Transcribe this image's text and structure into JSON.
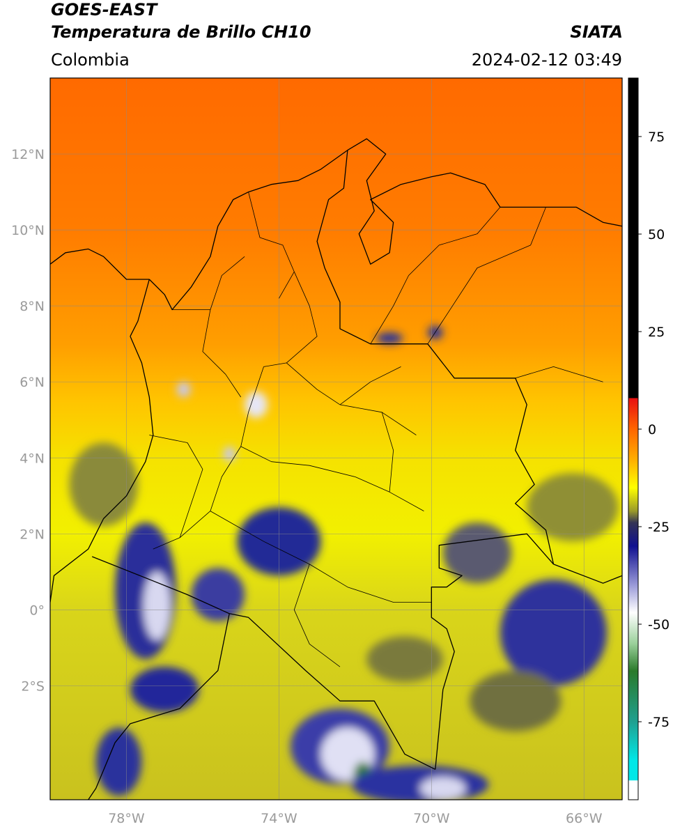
{
  "header": {
    "line1": "GOES-EAST",
    "line2": "Temperatura de Brillo CH10",
    "org": "SIATA",
    "region": "Colombia",
    "datetime": "2024-02-12 03:49"
  },
  "map": {
    "lon_range": [
      -80,
      -65
    ],
    "lat_range": [
      -5,
      14
    ],
    "lat_ticks": [
      {
        "value": 12,
        "label": "12°N"
      },
      {
        "value": 10,
        "label": "10°N"
      },
      {
        "value": 8,
        "label": "8°N"
      },
      {
        "value": 6,
        "label": "6°N"
      },
      {
        "value": 4,
        "label": "4°N"
      },
      {
        "value": 2,
        "label": "2°N"
      },
      {
        "value": 0,
        "label": "0°"
      },
      {
        "value": -2,
        "label": "2°S"
      }
    ],
    "lon_ticks": [
      {
        "value": -78,
        "label": "78°W"
      },
      {
        "value": -74,
        "label": "74°W"
      },
      {
        "value": -70,
        "label": "70°W"
      },
      {
        "value": -66,
        "label": "66°W"
      }
    ],
    "gridlines": true
  },
  "colorbar": {
    "range": [
      -95,
      90
    ],
    "ticks": [
      {
        "value": 75,
        "label": "75"
      },
      {
        "value": 50,
        "label": "50"
      },
      {
        "value": 25,
        "label": "25"
      },
      {
        "value": 0,
        "label": "0"
      },
      {
        "value": -25,
        "label": "-25"
      },
      {
        "value": -50,
        "label": "-50"
      },
      {
        "value": -75,
        "label": "-75"
      }
    ],
    "stops": [
      {
        "value": 90,
        "color": "#000000"
      },
      {
        "value": 8,
        "color": "#000000"
      },
      {
        "value": 7.9,
        "color": "#e81010"
      },
      {
        "value": 0,
        "color": "#ff6600"
      },
      {
        "value": -8,
        "color": "#ffb000"
      },
      {
        "value": -15,
        "color": "#ffff00"
      },
      {
        "value": -21,
        "color": "#9a9a2a"
      },
      {
        "value": -24,
        "color": "#333355"
      },
      {
        "value": -30,
        "color": "#101090"
      },
      {
        "value": -40,
        "color": "#9a9ad8"
      },
      {
        "value": -47,
        "color": "#ffffff"
      },
      {
        "value": -55,
        "color": "#9ad09a"
      },
      {
        "value": -62,
        "color": "#2a7a2a"
      },
      {
        "value": -75,
        "color": "#20a090"
      },
      {
        "value": -85,
        "color": "#00e8e8"
      },
      {
        "value": -90,
        "color": "#00e8e8"
      },
      {
        "value": -90.1,
        "color": "#ffffff"
      },
      {
        "value": -95,
        "color": "#ffffff"
      }
    ]
  },
  "field": {
    "lat_gradient": [
      {
        "lat": 14,
        "color": "#ff6a00"
      },
      {
        "lat": 10,
        "color": "#ff7c00"
      },
      {
        "lat": 7,
        "color": "#ff9e00"
      },
      {
        "lat": 5.5,
        "color": "#ffc400"
      },
      {
        "lat": 4,
        "color": "#f5e200"
      },
      {
        "lat": 2,
        "color": "#f2f000"
      },
      {
        "lat": 0,
        "color": "#d9d51a"
      },
      {
        "lat": -5,
        "color": "#c9c21e"
      }
    ],
    "cloud_cells": [
      {
        "lon": -77.5,
        "lat": 0.5,
        "rx": 0.8,
        "ry": 1.8,
        "color": "#2a2f9a"
      },
      {
        "lon": -77.2,
        "lat": 0.1,
        "rx": 0.35,
        "ry": 0.9,
        "color": "#d8d8f0"
      },
      {
        "lon": -74,
        "lat": 1.8,
        "rx": 1.1,
        "ry": 0.9,
        "color": "#242a96"
      },
      {
        "lon": -77,
        "lat": -2.1,
        "rx": 0.9,
        "ry": 0.6,
        "color": "#23289a"
      },
      {
        "lon": -72.4,
        "lat": -3.6,
        "rx": 1.3,
        "ry": 1.0,
        "color": "#3a3ea8"
      },
      {
        "lon": -72.2,
        "lat": -3.8,
        "rx": 0.7,
        "ry": 0.7,
        "color": "#e0e0f4"
      },
      {
        "lon": -71.8,
        "lat": -4.4,
        "rx": 0.25,
        "ry": 0.4,
        "color": "#2a7a2a"
      },
      {
        "lon": -70.3,
        "lat": -4.6,
        "rx": 1.8,
        "ry": 0.5,
        "color": "#2a30a0"
      },
      {
        "lon": -69.7,
        "lat": -4.7,
        "rx": 0.6,
        "ry": 0.3,
        "color": "#d8d8f0"
      },
      {
        "lon": -66.8,
        "lat": -0.6,
        "rx": 1.4,
        "ry": 1.4,
        "color": "#2e339c"
      },
      {
        "lon": -68.8,
        "lat": 1.5,
        "rx": 0.9,
        "ry": 0.8,
        "color": "#5a5a70"
      },
      {
        "lon": -75.6,
        "lat": 0.4,
        "rx": 0.7,
        "ry": 0.7,
        "color": "#3a3ea0"
      },
      {
        "lon": -74.6,
        "lat": 5.4,
        "rx": 0.3,
        "ry": 0.35,
        "color": "#e6e6f6"
      },
      {
        "lon": -76.5,
        "lat": 5.8,
        "rx": 0.18,
        "ry": 0.2,
        "color": "#c8c8ee"
      },
      {
        "lon": -75.3,
        "lat": 4.1,
        "rx": 0.16,
        "ry": 0.2,
        "color": "#c8c8ee"
      },
      {
        "lon": -71.1,
        "lat": 7.15,
        "rx": 0.35,
        "ry": 0.15,
        "color": "#26309a"
      },
      {
        "lon": -69.9,
        "lat": 7.3,
        "rx": 0.2,
        "ry": 0.18,
        "color": "#26309a"
      },
      {
        "lon": -78.6,
        "lat": 3.3,
        "rx": 0.9,
        "ry": 1.1,
        "color": "#8a8a3a"
      },
      {
        "lon": -66.3,
        "lat": 2.7,
        "rx": 1.2,
        "ry": 0.9,
        "color": "#8f8f36"
      },
      {
        "lon": -67.8,
        "lat": -2.4,
        "rx": 1.2,
        "ry": 0.8,
        "color": "#6f6f40"
      },
      {
        "lon": -70.7,
        "lat": -1.3,
        "rx": 1.0,
        "ry": 0.6,
        "color": "#7a7a3c"
      },
      {
        "lon": -78.2,
        "lat": -4.0,
        "rx": 0.6,
        "ry": 0.9,
        "color": "#2c329c"
      }
    ]
  },
  "borders": {
    "coast_colombia_caribbean": [
      [
        -77.4,
        8.7
      ],
      [
        -77.0,
        8.3
      ],
      [
        -76.8,
        7.9
      ],
      [
        -76.3,
        8.5
      ],
      [
        -75.8,
        9.3
      ],
      [
        -75.6,
        10.1
      ],
      [
        -75.2,
        10.8
      ],
      [
        -74.8,
        11.0
      ],
      [
        -74.2,
        11.2
      ],
      [
        -73.5,
        11.3
      ],
      [
        -72.9,
        11.6
      ],
      [
        -72.2,
        12.1
      ],
      [
        -71.7,
        12.4
      ],
      [
        -71.2,
        12.0
      ],
      [
        -71.7,
        11.3
      ],
      [
        -71.5,
        10.5
      ],
      [
        -71.9,
        9.9
      ],
      [
        -71.6,
        9.1
      ],
      [
        -71.1,
        9.4
      ],
      [
        -71.0,
        10.2
      ],
      [
        -71.6,
        10.8
      ],
      [
        -70.8,
        11.2
      ],
      [
        -70.0,
        11.4
      ],
      [
        -69.5,
        11.5
      ],
      [
        -68.6,
        11.2
      ],
      [
        -68.2,
        10.6
      ],
      [
        -67.0,
        10.6
      ],
      [
        -66.2,
        10.6
      ],
      [
        -65.5,
        10.2
      ],
      [
        -65.0,
        10.1
      ]
    ],
    "coast_panama": [
      [
        -80,
        9.1
      ],
      [
        -79.6,
        9.4
      ],
      [
        -79.0,
        9.5
      ],
      [
        -78.6,
        9.3
      ],
      [
        -78.0,
        8.7
      ],
      [
        -77.4,
        8.7
      ]
    ],
    "coast_pacific": [
      [
        -77.9,
        7.2
      ],
      [
        -77.6,
        6.5
      ],
      [
        -77.4,
        5.6
      ],
      [
        -77.3,
        4.6
      ],
      [
        -77.5,
        3.9
      ],
      [
        -78.0,
        3.0
      ],
      [
        -78.6,
        2.4
      ],
      [
        -79.0,
        1.6
      ],
      [
        -79.9,
        0.9
      ],
      [
        -80.0,
        0.2
      ]
    ],
    "border_col_ven": [
      [
        -72.2,
        12.1
      ],
      [
        -72.3,
        11.1
      ],
      [
        -72.7,
        10.8
      ],
      [
        -73.0,
        9.7
      ],
      [
        -72.8,
        9.0
      ],
      [
        -72.4,
        8.1
      ],
      [
        -72.4,
        7.4
      ],
      [
        -71.6,
        7.0
      ],
      [
        -70.1,
        7.0
      ],
      [
        -69.4,
        6.1
      ],
      [
        -67.8,
        6.1
      ],
      [
        -67.5,
        5.4
      ],
      [
        -67.8,
        4.2
      ],
      [
        -67.3,
        3.3
      ],
      [
        -67.8,
        2.8
      ],
      [
        -67.0,
        2.1
      ],
      [
        -66.8,
        1.2
      ]
    ],
    "border_col_bra": [
      [
        -66.8,
        1.2
      ],
      [
        -67.5,
        2.0
      ],
      [
        -69.8,
        1.7
      ],
      [
        -69.8,
        1.1
      ],
      [
        -69.2,
        0.9
      ],
      [
        -69.6,
        0.6
      ],
      [
        -70.0,
        0.6
      ],
      [
        -70.0,
        -0.2
      ],
      [
        -69.6,
        -0.5
      ],
      [
        -69.4,
        -1.1
      ],
      [
        -69.7,
        -2.1
      ],
      [
        -69.9,
        -4.2
      ]
    ],
    "border_col_per": [
      [
        -69.9,
        -4.2
      ],
      [
        -70.7,
        -3.8
      ],
      [
        -71.5,
        -2.4
      ],
      [
        -72.4,
        -2.4
      ],
      [
        -73.3,
        -1.6
      ],
      [
        -74.8,
        -0.2
      ],
      [
        -75.3,
        -0.1
      ]
    ],
    "border_col_ecu": [
      [
        -75.3,
        -0.1
      ],
      [
        -76.4,
        0.4
      ],
      [
        -77.4,
        0.8
      ],
      [
        -78.9,
        1.4
      ]
    ],
    "border_ecu_per": [
      [
        -75.3,
        -0.1
      ],
      [
        -75.6,
        -1.6
      ],
      [
        -76.6,
        -2.6
      ],
      [
        -77.9,
        -3.0
      ],
      [
        -78.3,
        -3.5
      ],
      [
        -78.8,
        -4.7
      ],
      [
        -79.0,
        -5.0
      ]
    ],
    "border_bra_ven": [
      [
        -66.8,
        1.2
      ],
      [
        -65.5,
        0.7
      ],
      [
        -65.0,
        0.9
      ]
    ],
    "border_panama": [
      [
        -77.9,
        7.2
      ],
      [
        -77.7,
        7.6
      ],
      [
        -77.4,
        8.7
      ]
    ],
    "depts": [
      [
        [
          -76.8,
          7.9
        ],
        [
          -75.8,
          7.9
        ],
        [
          -75.5,
          8.8
        ],
        [
          -74.9,
          9.3
        ]
      ],
      [
        [
          -75.8,
          7.9
        ],
        [
          -76.0,
          6.8
        ],
        [
          -75.4,
          6.2
        ],
        [
          -75.0,
          5.6
        ]
      ],
      [
        [
          -74.8,
          11.0
        ],
        [
          -74.5,
          9.8
        ],
        [
          -73.9,
          9.6
        ],
        [
          -73.6,
          8.9
        ],
        [
          -74.0,
          8.2
        ]
      ],
      [
        [
          -73.6,
          8.9
        ],
        [
          -73.2,
          8.0
        ],
        [
          -73.0,
          7.2
        ],
        [
          -73.8,
          6.5
        ],
        [
          -74.4,
          6.4
        ]
      ],
      [
        [
          -73.8,
          6.5
        ],
        [
          -73.0,
          5.8
        ],
        [
          -72.4,
          5.4
        ],
        [
          -71.3,
          5.2
        ],
        [
          -70.4,
          4.6
        ]
      ],
      [
        [
          -74.4,
          6.4
        ],
        [
          -74.8,
          5.2
        ],
        [
          -75.0,
          4.3
        ],
        [
          -75.5,
          3.5
        ],
        [
          -75.8,
          2.6
        ]
      ],
      [
        [
          -75.0,
          4.3
        ],
        [
          -74.2,
          3.9
        ],
        [
          -73.2,
          3.8
        ],
        [
          -72.0,
          3.5
        ],
        [
          -71.1,
          3.1
        ],
        [
          -70.2,
          2.6
        ]
      ],
      [
        [
          -75.8,
          2.6
        ],
        [
          -76.6,
          1.9
        ],
        [
          -77.3,
          1.6
        ]
      ],
      [
        [
          -75.8,
          2.6
        ],
        [
          -74.4,
          1.8
        ],
        [
          -73.2,
          1.2
        ],
        [
          -72.2,
          0.6
        ],
        [
          -71.0,
          0.2
        ],
        [
          -70.0,
          0.2
        ]
      ],
      [
        [
          -73.2,
          1.2
        ],
        [
          -73.6,
          0.0
        ],
        [
          -73.2,
          -0.9
        ],
        [
          -72.4,
          -1.5
        ]
      ],
      [
        [
          -71.1,
          3.1
        ],
        [
          -71.0,
          4.2
        ],
        [
          -71.3,
          5.2
        ]
      ],
      [
        [
          -72.4,
          5.4
        ],
        [
          -71.6,
          6.0
        ],
        [
          -70.8,
          6.4
        ]
      ],
      [
        [
          -77.4,
          4.6
        ],
        [
          -76.4,
          4.4
        ],
        [
          -76.0,
          3.7
        ],
        [
          -76.6,
          1.9
        ]
      ]
    ],
    "venezuela_states": [
      [
        [
          -68.2,
          10.6
        ],
        [
          -68.8,
          9.9
        ],
        [
          -69.8,
          9.6
        ],
        [
          -70.6,
          8.8
        ],
        [
          -71.0,
          8.0
        ],
        [
          -71.6,
          7.0
        ]
      ],
      [
        [
          -67.0,
          10.6
        ],
        [
          -67.4,
          9.6
        ],
        [
          -68.8,
          9.0
        ],
        [
          -70.1,
          7.0
        ]
      ],
      [
        [
          -67.8,
          6.1
        ],
        [
          -66.8,
          6.4
        ],
        [
          -65.5,
          6.0
        ]
      ]
    ]
  },
  "labels": {
    "map_alt": "Mapa de temperatura de brillo",
    "colorbar_alt": "Barra de colores"
  }
}
